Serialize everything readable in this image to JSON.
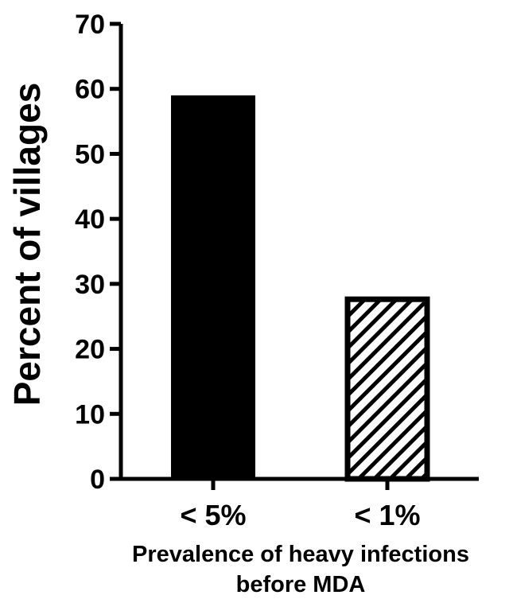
{
  "chart_data": {
    "type": "bar",
    "title": "",
    "ylabel": "Percent of villages",
    "xlabel_lines": [
      "Prevalence of heavy infections",
      "before MDA"
    ],
    "categories": [
      "< 5%",
      "< 1%"
    ],
    "values": [
      59,
      28
    ],
    "bar_styles": [
      "solid",
      "hatched"
    ],
    "bar_color": "#000000",
    "ylim": [
      0,
      70
    ],
    "yticks": [
      "0",
      "10",
      "20",
      "30",
      "40",
      "50",
      "60",
      "70"
    ],
    "grid": false,
    "legend": "none"
  }
}
